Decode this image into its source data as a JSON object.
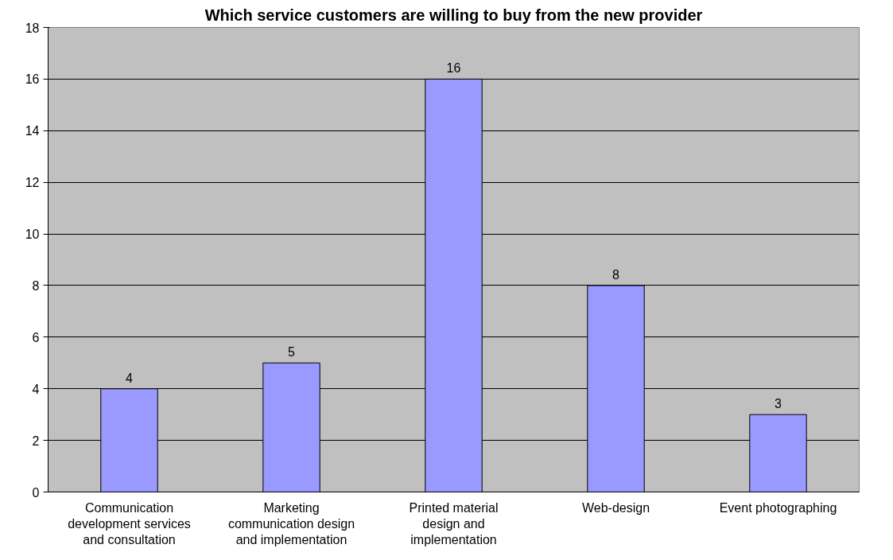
{
  "chart_data": {
    "type": "bar",
    "title": "Which service customers are willing to buy from the new provider",
    "categories": [
      "Communication development services and consultation",
      "Marketing communication design and implementation",
      "Printed material design and implementation",
      "Web-design",
      "Event photographing"
    ],
    "values": [
      4,
      5,
      16,
      8,
      3
    ],
    "color": "#9999ff",
    "ylim": [
      0,
      18
    ],
    "yticks": [
      0,
      2,
      4,
      6,
      8,
      10,
      12,
      14,
      16,
      18
    ],
    "grid": "y",
    "data_labels": true
  }
}
